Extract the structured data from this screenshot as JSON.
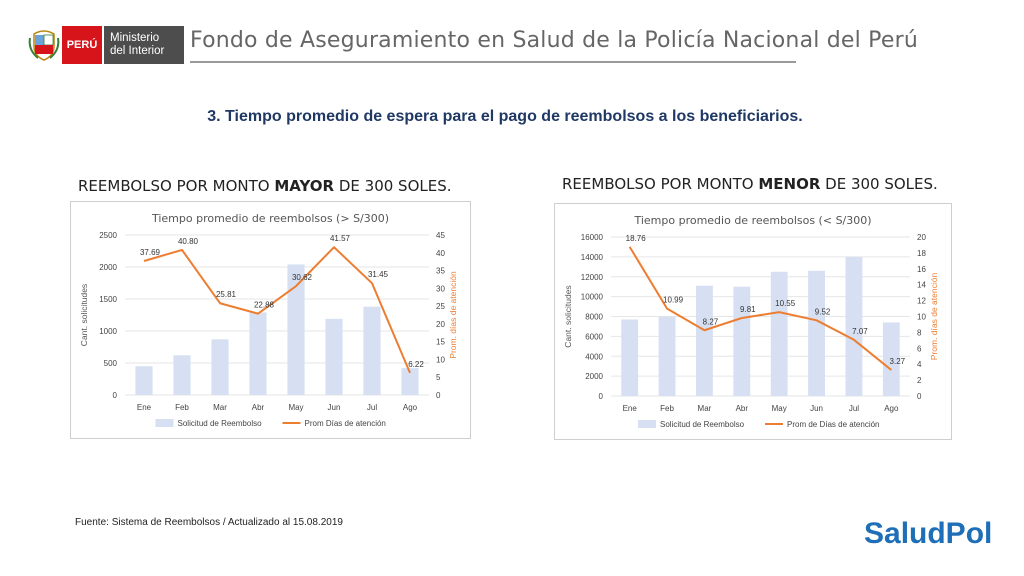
{
  "header": {
    "country_label": "PERÚ",
    "ministry_line1": "Ministerio",
    "ministry_line2": "del Interior",
    "org_title": "Fondo de Aseguramiento en Salud de la Policía Nacional del Perú"
  },
  "slide_title": "3. Tiempo promedio de espera para el pago de reembolsos a los beneficiarios.",
  "left_heading": {
    "pre": "REEMBOLSO POR MONTO ",
    "bold": "MAYOR",
    "post": " DE 300 SOLES."
  },
  "right_heading": {
    "pre": "REEMBOLSO POR MONTO ",
    "bold": "MENOR",
    "post": " DE 300 SOLES."
  },
  "footer": "Fuente: Sistema de Reembolsos / Actualizado al 15.08.2019",
  "logo_text": "SaludPol",
  "colors": {
    "bar": "#d6e0f2",
    "line": "#ed7d31",
    "title_text": "#1f3864",
    "country_red": "#d7141a"
  },
  "chart_data": [
    {
      "type": "bar",
      "title": "Tiempo promedio de reembolsos (> S/300)",
      "categories": [
        "Ene",
        "Feb",
        "Mar",
        "Abr",
        "May",
        "Jun",
        "Jul",
        "Ago"
      ],
      "ylabel": "Cant. solicitudes",
      "y2label": "Prom. días de atención",
      "ylim": [
        0,
        2500
      ],
      "yticks": [
        0,
        500,
        1000,
        1500,
        2000,
        2500
      ],
      "y2lim": [
        0,
        45
      ],
      "y2ticks": [
        0,
        5,
        10,
        15,
        20,
        25,
        30,
        35,
        40,
        45
      ],
      "series": [
        {
          "name": "Solicitud de Reembolso",
          "kind": "bar",
          "axis": "left",
          "values": [
            450,
            620,
            870,
            1290,
            2040,
            1190,
            1380,
            420
          ]
        },
        {
          "name": "Prom Días de atención",
          "kind": "line",
          "axis": "right",
          "values": [
            37.69,
            40.8,
            25.81,
            22.88,
            30.62,
            41.57,
            31.45,
            6.22
          ],
          "labels": [
            "37.69",
            "40.80",
            "25.81",
            "22.88",
            "30.62",
            "41.57",
            "31.45",
            "6.22"
          ]
        }
      ],
      "legend": "bottom"
    },
    {
      "type": "bar",
      "title": "Tiempo promedio de reembolsos (< S/300)",
      "categories": [
        "Ene",
        "Feb",
        "Mar",
        "Abr",
        "May",
        "Jun",
        "Jul",
        "Ago"
      ],
      "ylabel": "Cant. solicitudes",
      "y2label": "Prom. días de atención",
      "ylim": [
        0,
        16000
      ],
      "yticks": [
        0,
        2000,
        4000,
        6000,
        8000,
        10000,
        12000,
        14000,
        16000
      ],
      "y2lim": [
        0,
        20
      ],
      "y2ticks": [
        0,
        2,
        4,
        6,
        8,
        10,
        12,
        14,
        16,
        18,
        20
      ],
      "series": [
        {
          "name": "Solicitud de Reembolso",
          "kind": "bar",
          "axis": "left",
          "values": [
            7700,
            8000,
            11100,
            11000,
            12500,
            12600,
            14000,
            7400
          ]
        },
        {
          "name": "Prom de Días de atención",
          "kind": "line",
          "axis": "right",
          "values": [
            18.76,
            10.99,
            8.27,
            9.81,
            10.55,
            9.52,
            7.07,
            3.27
          ],
          "labels": [
            "18.76",
            "10.99",
            "8.27",
            "9.81",
            "10.55",
            "9.52",
            "7.07",
            "3.27"
          ]
        }
      ],
      "legend": "bottom"
    }
  ]
}
